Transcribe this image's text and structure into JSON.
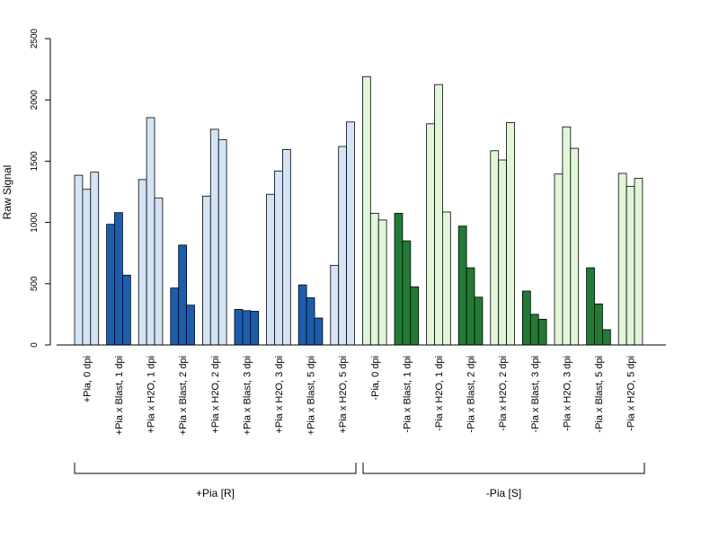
{
  "chart_data": {
    "type": "bar",
    "ylabel": "Raw Signal",
    "xlabel": "",
    "ylim": [
      0,
      2500
    ],
    "yticks": [
      "0",
      "500",
      "1000",
      "1500",
      "2000",
      "2500"
    ],
    "grid": false,
    "legend": "none",
    "categories": [
      {
        "label": "+Pia, 0 dpi",
        "group": "+Pia [R]",
        "fill": "#d4e4f5",
        "values": [
          1385,
          1270,
          1410
        ]
      },
      {
        "label": "+Pia x Blast, 1 dpi",
        "group": "+Pia [R]",
        "fill": "#1c5eab",
        "values": [
          985,
          1080,
          570
        ]
      },
      {
        "label": "+Pia x H2O, 1 dpi",
        "group": "+Pia [R]",
        "fill": "#d4e4f5",
        "values": [
          1350,
          1855,
          1200
        ]
      },
      {
        "label": "+Pia x Blast, 2 dpi",
        "group": "+Pia [R]",
        "fill": "#1c5eab",
        "values": [
          465,
          815,
          325
        ]
      },
      {
        "label": "+Pia x H2O, 2 dpi",
        "group": "+Pia [R]",
        "fill": "#d4e4f5",
        "values": [
          1215,
          1760,
          1675
        ]
      },
      {
        "label": "+Pia x Blast, 3 dpi",
        "group": "+Pia [R]",
        "fill": "#1c5eab",
        "values": [
          290,
          280,
          275
        ]
      },
      {
        "label": "+Pia x H2O, 3 dpi",
        "group": "+Pia [R]",
        "fill": "#d4e4f5",
        "values": [
          1230,
          1420,
          1595
        ]
      },
      {
        "label": "+Pia x Blast, 5 dpi",
        "group": "+Pia [R]",
        "fill": "#1c5eab",
        "values": [
          490,
          385,
          220
        ]
      },
      {
        "label": "+Pia x H2O, 5 dpi",
        "group": "+Pia [R]",
        "fill": "#d4e4f5",
        "values": [
          650,
          1620,
          1820
        ]
      },
      {
        "label": "-Pia, 0 dpi",
        "group": "-Pia [S]",
        "fill": "#e1f5d9",
        "values": [
          2190,
          1075,
          1020
        ]
      },
      {
        "label": "-Pia x Blast, 1 dpi",
        "group": "-Pia [S]",
        "fill": "#237a37",
        "values": [
          1075,
          850,
          475
        ]
      },
      {
        "label": "-Pia x H2O, 1 dpi",
        "group": "-Pia [S]",
        "fill": "#e1f5d9",
        "values": [
          1805,
          2125,
          1085
        ]
      },
      {
        "label": "-Pia x Blast, 2 dpi",
        "group": "-Pia [S]",
        "fill": "#237a37",
        "values": [
          970,
          630,
          390
        ]
      },
      {
        "label": "-Pia x H2O, 2 dpi",
        "group": "-Pia [S]",
        "fill": "#e1f5d9",
        "values": [
          1585,
          1510,
          1815
        ]
      },
      {
        "label": "-Pia x Blast, 3 dpi",
        "group": "-Pia [S]",
        "fill": "#237a37",
        "values": [
          440,
          250,
          210
        ]
      },
      {
        "label": "-Pia x H2O, 3 dpi",
        "group": "-Pia [S]",
        "fill": "#e1f5d9",
        "values": [
          1395,
          1780,
          1605
        ]
      },
      {
        "label": "-Pia x Blast, 5 dpi",
        "group": "-Pia [S]",
        "fill": "#237a37",
        "values": [
          630,
          335,
          125
        ]
      },
      {
        "label": "-Pia x H2O, 5 dpi",
        "group": "-Pia [S]",
        "fill": "#e1f5d9",
        "values": [
          1400,
          1295,
          1360
        ]
      }
    ],
    "groups": [
      "+Pia [R]",
      "-Pia [S]"
    ]
  }
}
